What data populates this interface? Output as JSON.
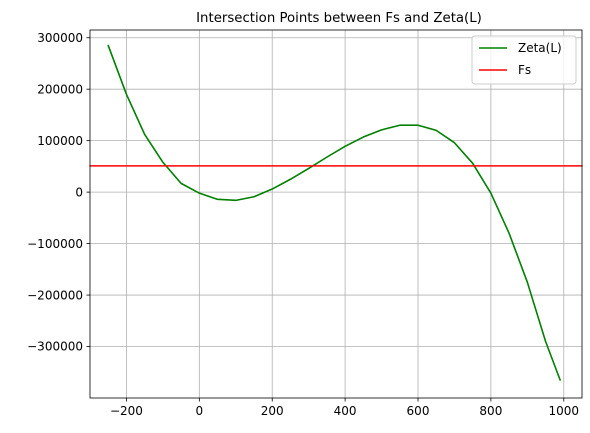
{
  "chart_data": {
    "type": "line",
    "title": "Intersection Points between Fs and Zeta(L)",
    "xlabel": "",
    "ylabel": "",
    "xlim": [
      -300,
      1050
    ],
    "ylim": [
      -400000,
      315000
    ],
    "x_ticks": [
      -200,
      0,
      200,
      400,
      600,
      800,
      1000
    ],
    "x_tick_labels": [
      "−200",
      "0",
      "200",
      "400",
      "600",
      "800",
      "1000"
    ],
    "y_ticks": [
      300000,
      200000,
      100000,
      0,
      -100000,
      -200000,
      -300000
    ],
    "y_tick_labels": [
      "300000",
      "200000",
      "100000",
      "0",
      "−100000",
      "−200000",
      "−300000"
    ],
    "grid": true,
    "legend_position": "top-right",
    "series": [
      {
        "name": "Zeta(L)",
        "color": "#008000",
        "x": [
          -250,
          -200,
          -150,
          -100,
          -50,
          0,
          50,
          100,
          150,
          200,
          250,
          300,
          350,
          400,
          450,
          500,
          550,
          600,
          650,
          700,
          750,
          800,
          850,
          900,
          950,
          990
        ],
        "y": [
          285000,
          190000,
          112000,
          58000,
          17000,
          -2000,
          -14000,
          -16000,
          -9000,
          6000,
          25000,
          46000,
          68000,
          89000,
          107000,
          121000,
          130000,
          130000,
          120000,
          96000,
          56000,
          -2000,
          -80000,
          -175000,
          -290000,
          -365000
        ]
      },
      {
        "name": "Fs",
        "color": "#ff0000",
        "x": [
          -300,
          1050
        ],
        "y": [
          51000,
          51000
        ]
      }
    ]
  }
}
